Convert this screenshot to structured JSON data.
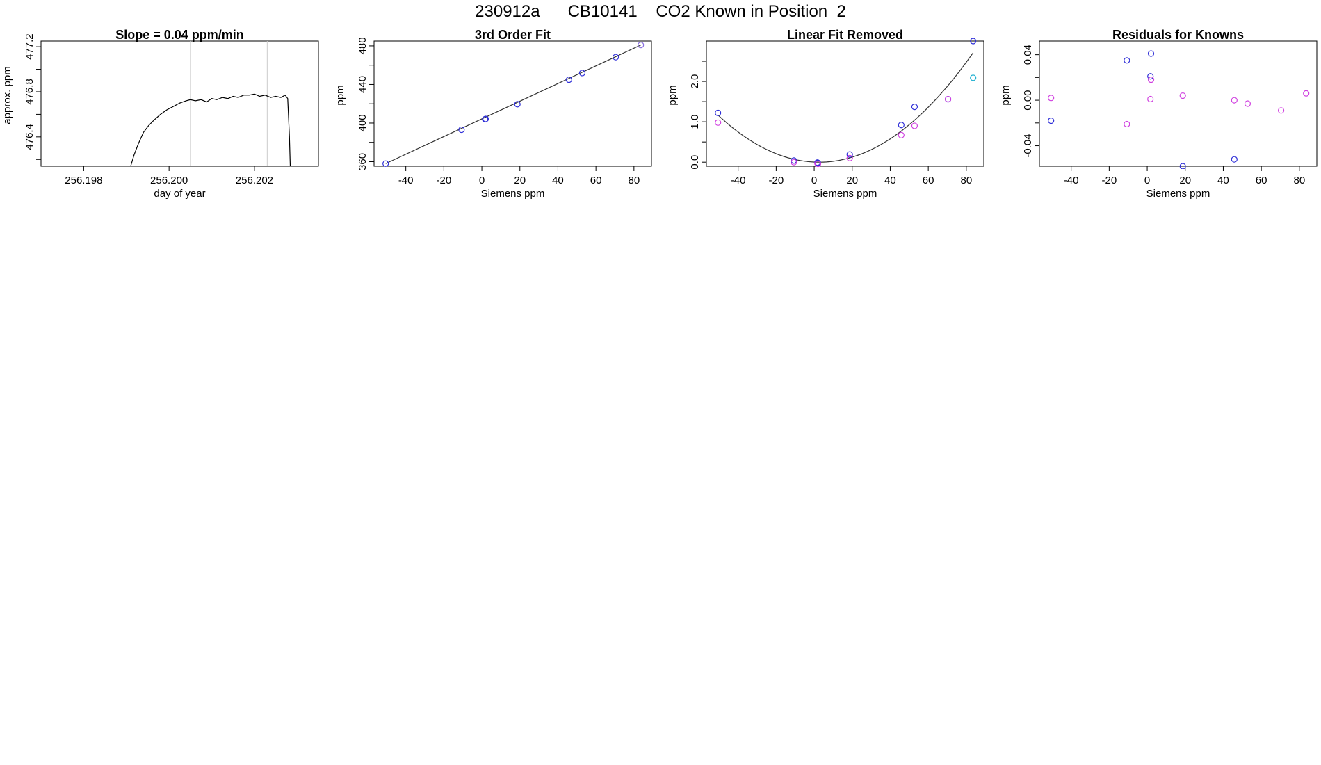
{
  "figure": {
    "title": "230912a      CB10141    CO2 Known in Position  2"
  },
  "chart_data": [
    {
      "type": "line",
      "title": "Slope =  0.04  ppm/min",
      "xlabel": "day of year",
      "ylabel": "approx. ppm",
      "xlim": [
        256.197,
        256.2035
      ],
      "ylim": [
        476.14,
        477.25
      ],
      "x_ticks": [
        256.198,
        256.2,
        256.202
      ],
      "x_tick_labels": [
        "256.198",
        "256.200",
        "256.202"
      ],
      "y_ticks": [
        476.4,
        476.8,
        477.2
      ],
      "y_tick_labels": [
        "476.4",
        "476.8",
        "477.2"
      ],
      "y_minor_ticks": [
        476.2,
        476.6,
        477.0
      ],
      "vlines": [
        256.2005,
        256.2023
      ],
      "vline_color": "#cccccc",
      "line_color": "#000000",
      "grid": false,
      "series": [
        {
          "x": [
            256.1991,
            256.19918,
            256.19928,
            256.1994,
            256.19952,
            256.19965,
            256.1998,
            256.19995,
            256.2001,
            256.20025,
            256.2004,
            256.2005,
            256.20062,
            256.20075,
            256.20088,
            256.201,
            256.20112,
            256.20125,
            256.20138,
            256.2015,
            256.20162,
            256.20175,
            256.20188,
            256.202,
            256.20212,
            256.20225,
            256.20238,
            256.2025,
            256.20262,
            256.20272,
            256.20278,
            256.20282,
            256.20284
          ],
          "y": [
            476.14,
            476.24,
            476.34,
            476.44,
            476.5,
            476.55,
            476.6,
            476.64,
            476.67,
            476.7,
            476.72,
            476.73,
            476.72,
            476.73,
            476.71,
            476.74,
            476.73,
            476.75,
            476.74,
            476.76,
            476.75,
            476.77,
            476.77,
            476.78,
            476.76,
            476.77,
            476.75,
            476.76,
            476.75,
            476.77,
            476.74,
            476.4,
            476.14
          ]
        }
      ]
    },
    {
      "type": "scatter",
      "title": "3rd Order Fit",
      "xlabel": "Siemens ppm",
      "ylabel": "ppm",
      "xlim": [
        -56.7,
        89.2
      ],
      "ylim": [
        355.3,
        485.0
      ],
      "x_ticks": [
        -40,
        -20,
        0,
        20,
        40,
        60,
        80
      ],
      "x_tick_labels": [
        "-40",
        "-20",
        "0",
        "20",
        "40",
        "60",
        "80"
      ],
      "y_ticks": [
        360,
        400,
        440,
        480
      ],
      "y_tick_labels": [
        "360",
        "400",
        "440",
        "480"
      ],
      "y_minor_ticks": [
        380,
        420,
        460
      ],
      "grid": false,
      "fit_line": {
        "x": [
          -50.6,
          83.6
        ],
        "y": [
          358.0,
          480.9
        ],
        "color": "#333333"
      },
      "points": {
        "x": [
          -50.6,
          -10.7,
          1.7,
          2.0,
          18.7,
          45.8,
          52.8,
          70.4,
          83.6
        ],
        "y": [
          358.0,
          393.1,
          404.0,
          404.3,
          419.5,
          444.9,
          451.9,
          468.3,
          480.9
        ],
        "colors": [
          "#3030d8",
          "#3030d8",
          "#3030d8",
          "#3030d8",
          "#3030d8",
          "#3030d8",
          "#3030d8",
          "#3030d8",
          "#8a70e0"
        ]
      }
    },
    {
      "type": "scatter",
      "title": "Linear Fit Removed",
      "xlabel": "Siemens ppm",
      "ylabel": "ppm",
      "xlim": [
        -56.7,
        89.2
      ],
      "ylim": [
        -0.1,
        3.0
      ],
      "x_ticks": [
        -40,
        -20,
        0,
        20,
        40,
        60,
        80
      ],
      "x_tick_labels": [
        "-40",
        "-20",
        "0",
        "20",
        "40",
        "60",
        "80"
      ],
      "y_ticks": [
        0.0,
        1.0,
        2.0
      ],
      "y_tick_labels": [
        "0.0",
        "1.0",
        "2.0"
      ],
      "y_minor_ticks": [
        0.5,
        1.5,
        2.5
      ],
      "grid": false,
      "fit_curve": {
        "a": 0.000413,
        "b": -0.00212,
        "c": 0.002,
        "xmin": -50.6,
        "xmax": 83.6,
        "color": "#333333"
      },
      "points": {
        "x": [
          -50.6,
          -50.6,
          -10.7,
          -10.7,
          1.7,
          1.7,
          2.0,
          2.0,
          18.7,
          18.7,
          45.8,
          45.8,
          52.8,
          52.8,
          70.4,
          70.4,
          83.6,
          83.6
        ],
        "y": [
          1.22,
          0.98,
          0.04,
          0.0,
          -0.01,
          -0.03,
          -0.02,
          -0.04,
          0.19,
          0.1,
          0.92,
          0.67,
          1.37,
          0.9,
          1.56,
          1.56,
          3.0,
          2.09
        ],
        "colors": [
          "#3030d8",
          "#d040e0",
          "#3030d8",
          "#d040e0",
          "#3030d8",
          "#d040e0",
          "#3030d8",
          "#d040e0",
          "#3030d8",
          "#d040e0",
          "#3030d8",
          "#d040e0",
          "#3030d8",
          "#d040e0",
          "#3030d8",
          "#d040e0",
          "#3030d8",
          "#20b0d0"
        ]
      }
    },
    {
      "type": "scatter",
      "title": "Residuals for Knowns",
      "xlabel": "Siemens ppm",
      "ylabel": "ppm",
      "xlim": [
        -56.7,
        89.2
      ],
      "ylim": [
        -0.058,
        0.052
      ],
      "x_ticks": [
        -40,
        -20,
        0,
        20,
        40,
        60,
        80
      ],
      "x_tick_labels": [
        "-40",
        "-20",
        "0",
        "20",
        "40",
        "60",
        "80"
      ],
      "y_ticks": [
        -0.04,
        0.0,
        0.04
      ],
      "y_tick_labels": [
        "-0.04",
        "0.00",
        "0.04"
      ],
      "y_minor_ticks": [
        -0.02,
        0.02
      ],
      "grid": false,
      "points": {
        "x": [
          -50.6,
          -50.6,
          -10.7,
          -10.7,
          1.7,
          1.7,
          2.0,
          2.0,
          18.7,
          18.7,
          45.8,
          45.8,
          52.8,
          70.4,
          83.6
        ],
        "y": [
          -0.018,
          0.002,
          0.035,
          -0.021,
          0.021,
          0.001,
          0.041,
          0.018,
          -0.058,
          0.004,
          -0.052,
          0.0,
          -0.003,
          -0.009,
          0.006
        ],
        "colors": [
          "#3030d8",
          "#d040e0",
          "#3030d8",
          "#d040e0",
          "#3030d8",
          "#d040e0",
          "#3030d8",
          "#d040e0",
          "#3030d8",
          "#d040e0",
          "#3030d8",
          "#d040e0",
          "#d040e0",
          "#d040e0",
          "#d040e0"
        ]
      }
    }
  ]
}
